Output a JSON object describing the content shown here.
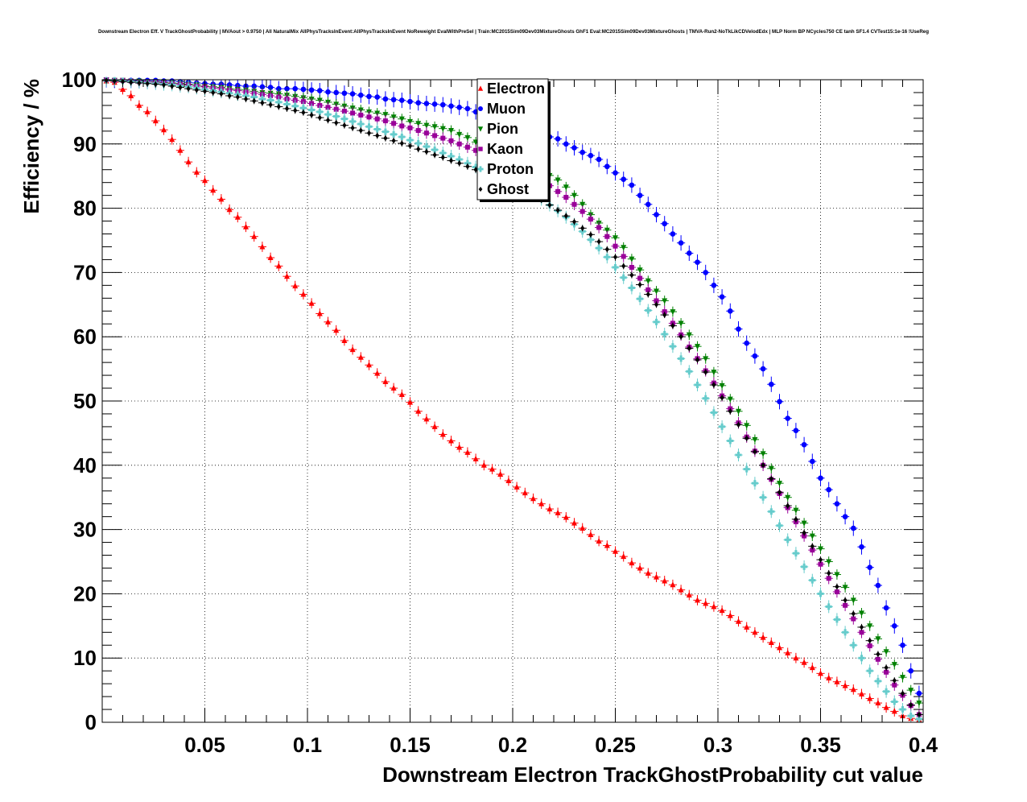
{
  "chart_data": {
    "type": "scatter",
    "title": "Downstream Electron Eff. V TrackGhostProbability | MVAout > 0.9750 | All NaturalMix AllPhysTracksInEvent:AllPhysTracksInEvent NoReweight EvalWithPreSel | Train:MC2015Sim09Dev03MixtureGhosts GhF1 Eval:MC2015Sim09Dev03MixtureGhosts | TMVA-Run2-NoTkLikCDVelodEdx | MLP Norm BP NCycles750 CE tanh SF1.4 CVTest15:1e-16 !UseReg",
    "xlabel": "Downstream Electron TrackGhostProbability cut value",
    "ylabel": "Efficiency / %",
    "xlim": [
      0.0,
      0.4
    ],
    "ylim": [
      0,
      100
    ],
    "x_ticks": [
      "0.05",
      "0.1",
      "0.15",
      "0.2",
      "0.25",
      "0.3",
      "0.35",
      "0.4"
    ],
    "y_ticks": [
      "0",
      "10",
      "20",
      "30",
      "40",
      "50",
      "60",
      "70",
      "80",
      "90",
      "100"
    ],
    "grid": true,
    "legend_position": "top-center",
    "x": [
      0.002,
      0.006,
      0.01,
      0.014,
      0.018,
      0.022,
      0.026,
      0.03,
      0.034,
      0.038,
      0.042,
      0.046,
      0.05,
      0.054,
      0.058,
      0.062,
      0.066,
      0.07,
      0.074,
      0.078,
      0.082,
      0.086,
      0.09,
      0.094,
      0.098,
      0.102,
      0.106,
      0.11,
      0.114,
      0.118,
      0.122,
      0.126,
      0.13,
      0.134,
      0.138,
      0.142,
      0.146,
      0.15,
      0.154,
      0.158,
      0.162,
      0.166,
      0.17,
      0.174,
      0.178,
      0.182,
      0.186,
      0.19,
      0.194,
      0.198,
      0.202,
      0.206,
      0.21,
      0.214,
      0.218,
      0.222,
      0.226,
      0.23,
      0.234,
      0.238,
      0.242,
      0.246,
      0.25,
      0.254,
      0.258,
      0.262,
      0.266,
      0.27,
      0.274,
      0.278,
      0.282,
      0.286,
      0.29,
      0.294,
      0.298,
      0.302,
      0.306,
      0.31,
      0.314,
      0.318,
      0.322,
      0.326,
      0.33,
      0.334,
      0.338,
      0.342,
      0.346,
      0.35,
      0.354,
      0.358,
      0.362,
      0.366,
      0.37,
      0.374,
      0.378,
      0.382,
      0.386,
      0.39,
      0.394,
      0.398
    ],
    "series": [
      {
        "name": "Electron",
        "color": "#ff0000",
        "marker": "triangle-up",
        "err": 0.8,
        "values": [
          99.8,
          99.6,
          98.5,
          97.5,
          96.0,
          95.0,
          93.6,
          92.2,
          90.7,
          89.0,
          87.2,
          85.6,
          84.3,
          82.8,
          81.4,
          79.8,
          78.6,
          77.1,
          75.6,
          74.0,
          72.3,
          71.0,
          69.4,
          67.9,
          66.6,
          65.2,
          63.6,
          62.3,
          61.0,
          59.4,
          58.0,
          56.8,
          55.6,
          54.3,
          53.0,
          52.0,
          51.0,
          49.8,
          48.4,
          47.2,
          46.0,
          44.8,
          43.8,
          42.8,
          42.0,
          41.0,
          40.0,
          39.4,
          38.6,
          37.6,
          36.6,
          35.7,
          34.8,
          34.0,
          33.2,
          32.6,
          31.9,
          31.0,
          30.2,
          29.2,
          28.2,
          27.5,
          26.6,
          25.8,
          24.8,
          24.0,
          23.2,
          22.6,
          22.0,
          21.4,
          20.6,
          19.8,
          19.0,
          18.5,
          18.0,
          17.4,
          16.6,
          15.7,
          14.8,
          14.0,
          13.2,
          12.4,
          11.6,
          10.8,
          10.0,
          9.3,
          8.5,
          7.6,
          6.9,
          6.3,
          5.7,
          5.1,
          4.4,
          3.7,
          3.0,
          2.3,
          1.7,
          1.0,
          0.6,
          0.4
        ]
      },
      {
        "name": "Muon",
        "color": "#0000ff",
        "marker": "circle",
        "err": 1.2,
        "values": [
          100.0,
          99.9,
          99.9,
          99.9,
          99.9,
          99.9,
          99.9,
          99.8,
          99.8,
          99.7,
          99.6,
          99.5,
          99.4,
          99.3,
          99.3,
          99.2,
          99.1,
          99.0,
          99.0,
          98.9,
          98.8,
          98.6,
          98.6,
          98.6,
          98.5,
          98.4,
          98.3,
          98.1,
          98.0,
          97.9,
          97.8,
          97.6,
          97.4,
          97.3,
          97.0,
          96.9,
          96.8,
          96.6,
          96.4,
          96.3,
          96.2,
          96.1,
          95.9,
          95.7,
          95.5,
          95.0,
          94.6,
          94.2,
          93.7,
          93.0,
          92.8,
          92.3,
          92.0,
          91.6,
          91.1,
          90.8,
          90.0,
          89.4,
          88.7,
          88.2,
          87.6,
          86.5,
          85.5,
          84.5,
          83.6,
          82.0,
          80.6,
          79.0,
          77.6,
          76.0,
          74.6,
          73.0,
          71.6,
          70.0,
          68.0,
          66.2,
          64.0,
          61.2,
          59.0,
          57.0,
          55.0,
          52.6,
          49.9,
          47.3,
          45.4,
          43.2,
          40.6,
          38.0,
          36.2,
          34.0,
          32.0,
          30.2,
          27.3,
          24.1,
          21.3,
          17.8,
          15.0,
          12.0,
          8.0,
          4.5
        ]
      },
      {
        "name": "Pion",
        "color": "#008000",
        "marker": "triangle-down",
        "err": 0.8,
        "values": [
          100.0,
          99.9,
          99.9,
          99.8,
          99.8,
          99.7,
          99.7,
          99.6,
          99.5,
          99.4,
          99.3,
          99.2,
          99.0,
          98.9,
          98.8,
          98.6,
          98.5,
          98.4,
          98.2,
          98.0,
          97.9,
          97.8,
          97.6,
          97.4,
          97.2,
          97.0,
          96.8,
          96.5,
          96.2,
          95.9,
          95.6,
          95.3,
          95.0,
          94.8,
          94.6,
          94.2,
          93.9,
          93.5,
          93.2,
          92.9,
          92.7,
          92.4,
          92.1,
          91.5,
          91.0,
          90.3,
          89.6,
          89.1,
          88.6,
          88.0,
          87.4,
          86.9,
          86.2,
          85.6,
          85.1,
          84.4,
          83.3,
          82.0,
          80.6,
          79.0,
          77.7,
          76.6,
          75.4,
          73.9,
          72.1,
          70.4,
          68.7,
          67.1,
          65.6,
          63.9,
          62.1,
          60.3,
          58.5,
          56.6,
          54.5,
          52.4,
          50.3,
          48.4,
          46.2,
          44.0,
          41.8,
          39.5,
          37.2,
          35.0,
          33.0,
          31.0,
          29.0,
          27.0,
          25.0,
          23.0,
          21.0,
          19.0,
          17.0,
          15.0,
          13.0,
          11.0,
          9.0,
          7.0,
          5.0,
          3.0
        ]
      },
      {
        "name": "Kaon",
        "color": "#990099",
        "marker": "square",
        "err": 0.9,
        "values": [
          100.0,
          99.9,
          99.9,
          99.8,
          99.7,
          99.7,
          99.6,
          99.5,
          99.4,
          99.3,
          99.2,
          99.0,
          98.9,
          98.7,
          98.6,
          98.4,
          98.3,
          98.1,
          97.9,
          97.7,
          97.5,
          97.3,
          97.0,
          96.8,
          96.6,
          96.3,
          96.0,
          95.7,
          95.4,
          95.1,
          94.8,
          94.5,
          94.2,
          93.9,
          93.6,
          93.2,
          92.8,
          92.5,
          92.1,
          91.7,
          91.3,
          90.9,
          90.5,
          90.0,
          89.5,
          89.0,
          88.5,
          88.0,
          87.5,
          86.9,
          86.3,
          85.7,
          85.0,
          84.3,
          83.5,
          82.6,
          81.7,
          80.6,
          79.5,
          78.3,
          77.0,
          75.6,
          74.1,
          72.5,
          70.8,
          69.1,
          67.3,
          65.6,
          63.9,
          62.1,
          60.3,
          58.4,
          56.6,
          54.7,
          52.8,
          50.8,
          48.8,
          46.6,
          44.4,
          42.2,
          40.0,
          37.8,
          35.6,
          33.4,
          31.2,
          29.0,
          26.8,
          24.6,
          22.4,
          20.3,
          18.2,
          16.1,
          14.0,
          11.9,
          9.8,
          7.8,
          5.8,
          4.2,
          2.6,
          1.2
        ]
      },
      {
        "name": "Proton",
        "color": "#66cccc",
        "marker": "cross",
        "err": 1.0,
        "values": [
          99.9,
          99.9,
          99.8,
          99.7,
          99.6,
          99.5,
          99.4,
          99.3,
          99.2,
          99.0,
          98.9,
          98.7,
          98.5,
          98.3,
          98.1,
          97.9,
          97.7,
          97.5,
          97.3,
          97.0,
          96.8,
          96.5,
          96.2,
          95.9,
          95.6,
          95.3,
          95.0,
          94.6,
          94.3,
          93.9,
          93.5,
          93.1,
          92.7,
          92.3,
          91.9,
          91.5,
          91.1,
          90.6,
          90.1,
          89.6,
          89.1,
          88.6,
          88.1,
          87.6,
          87.0,
          86.4,
          85.8,
          85.2,
          84.6,
          84.0,
          83.4,
          82.8,
          82.1,
          81.4,
          80.5,
          79.6,
          78.6,
          77.5,
          76.4,
          75.1,
          73.8,
          72.4,
          70.8,
          69.2,
          67.6,
          65.9,
          64.1,
          62.3,
          60.4,
          58.5,
          56.6,
          54.6,
          52.5,
          50.4,
          48.2,
          46.0,
          43.8,
          41.6,
          39.4,
          37.2,
          35.0,
          32.8,
          30.6,
          28.4,
          26.3,
          24.2,
          22.1,
          20.0,
          18.0,
          16.0,
          14.0,
          12.0,
          10.0,
          8.0,
          6.4,
          4.8,
          3.2,
          2.0,
          1.0,
          0.5
        ]
      },
      {
        "name": "Ghost",
        "color": "#000000",
        "marker": "diamond",
        "err": 0.5,
        "values": [
          99.9,
          99.8,
          99.7,
          99.6,
          99.5,
          99.4,
          99.3,
          99.2,
          99.0,
          98.8,
          98.6,
          98.4,
          98.2,
          98.0,
          97.8,
          97.5,
          97.3,
          97.0,
          96.7,
          96.4,
          96.1,
          95.8,
          95.5,
          95.2,
          94.9,
          94.5,
          94.1,
          93.7,
          93.3,
          92.9,
          92.5,
          92.1,
          91.7,
          91.3,
          90.9,
          90.5,
          90.1,
          89.7,
          89.2,
          88.8,
          88.3,
          87.9,
          87.4,
          87.0,
          86.5,
          86.0,
          85.5,
          85.0,
          84.5,
          83.9,
          83.3,
          82.7,
          82.0,
          81.3,
          80.5,
          79.7,
          78.8,
          77.9,
          76.9,
          75.9,
          74.8,
          73.6,
          72.4,
          71.0,
          69.6,
          68.1,
          66.6,
          65.0,
          63.4,
          61.7,
          60.0,
          58.2,
          56.4,
          54.5,
          52.5,
          50.5,
          48.4,
          46.3,
          44.2,
          42.1,
          40.0,
          37.9,
          35.8,
          33.7,
          31.6,
          29.5,
          27.4,
          25.3,
          23.2,
          21.1,
          19.0,
          16.9,
          14.8,
          12.7,
          10.6,
          8.5,
          6.5,
          4.5,
          2.7,
          1.2
        ]
      }
    ]
  }
}
